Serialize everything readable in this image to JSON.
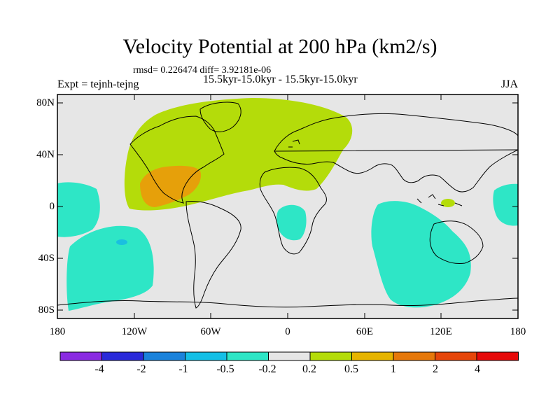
{
  "title": "Velocity Potential at 200 hPa (km2/s)",
  "stats_line": "rmsd= 0.226474 diff= 3.92181e-06",
  "experiment": "Expt = tejnh-tejng",
  "periods": "15.5kyr-15.0kyr - 15.5kyr-15.0kyr",
  "season": "JJA",
  "lat_labels": [
    "80N",
    "40N",
    "0",
    "40S",
    "80S"
  ],
  "lon_labels": [
    "180",
    "120W",
    "60W",
    "0",
    "60E",
    "120E",
    "180"
  ],
  "colorbar": {
    "labels": [
      "-4",
      "-2",
      "-1",
      "-0.5",
      "-0.2",
      "0.2",
      "0.5",
      "1",
      "2",
      "4"
    ],
    "colors": [
      "#8a2be2",
      "#2a2ad9",
      "#1a82db",
      "#14bfe6",
      "#2ee6c6",
      "#e6e6e6",
      "#b4dc0a",
      "#e6b400",
      "#e6780a",
      "#e6460a",
      "#e60a0a"
    ]
  },
  "field_colors": {
    "ocean_background": "#e6e6e6",
    "negative_anomaly": "#2ee6c6",
    "positive_weak": "#b4dc0a",
    "positive_mid": "#e6a00a"
  }
}
